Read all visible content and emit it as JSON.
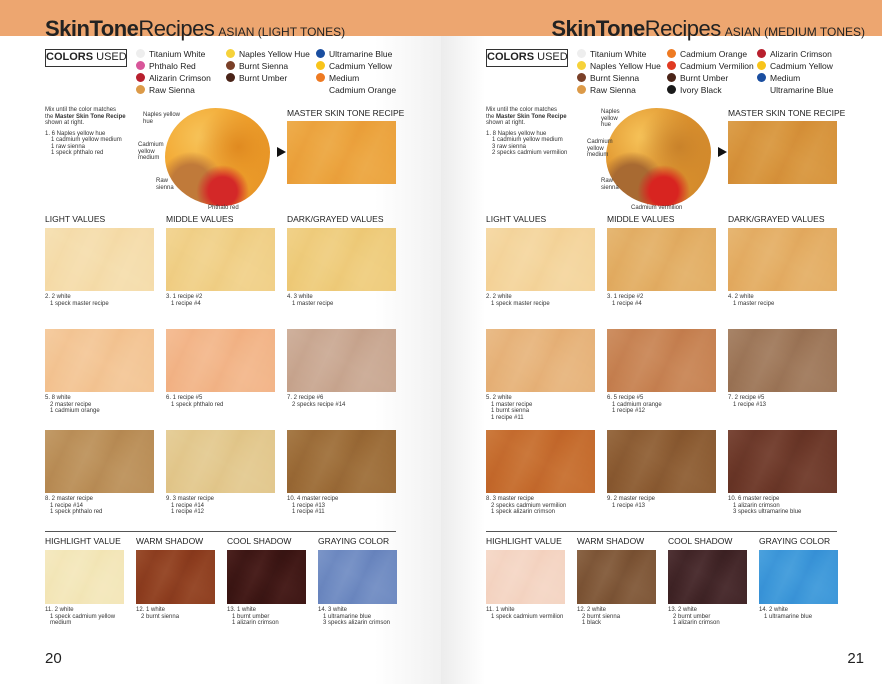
{
  "pages": [
    {
      "side": "left",
      "page_number": "20",
      "title": {
        "part1": "SkinTone",
        "part2": "Recipes",
        "subtitle": "ASIAN (LIGHT TONES)"
      },
      "colors_used_label": {
        "bold": "COLORS",
        "rest": "USED"
      },
      "colors_used": [
        [
          {
            "label": "Titanium White",
            "color": "#eeeeee"
          },
          {
            "label": "Phthalo Red",
            "color": "#d8569a"
          },
          {
            "label": "Alizarin Crimson",
            "color": "#b8202e"
          },
          {
            "label": "Raw Sienna",
            "color": "#dc9a48"
          }
        ],
        [
          {
            "label": "Naples Yellow Hue",
            "color": "#f6d23a"
          },
          {
            "label": "Burnt Sienna",
            "color": "#7a4028"
          },
          {
            "label": "Burnt Umber",
            "color": "#4a2418"
          }
        ],
        [
          {
            "label": "Ultramarine Blue",
            "color": "#1a4ea0"
          },
          {
            "label": "Cadmium Yellow",
            "color": "#f8c41a"
          },
          {
            "label": "Medium",
            "color": "#ee7a22"
          },
          {
            "label": "Cadmium Orange",
            "color": ""
          }
        ]
      ],
      "intro": {
        "line1": "Mix until the color matches",
        "line2_pre": "the",
        "bold": "Master Skin Tone Recipe",
        "line3": "shown at right.",
        "recipe": [
          "1. 6 Naples yellow hue",
          "1 cadmium yellow medium",
          "1 raw sienna",
          "1 speck phthalo red"
        ]
      },
      "palette_labels": [
        "Naples yellow hue",
        "Cadmium yellow medium",
        "Raw sienna",
        "Phthalo red"
      ],
      "palette_colors": {
        "main": "#f2a630",
        "dark": "#e08a20",
        "low": "#c07a3a",
        "accent": "#d42828"
      },
      "master_label": "MASTER SKIN TONE RECIPE",
      "master_color": "#eba23c",
      "sections": [
        "LIGHT VALUES",
        "MIDDLE VALUES",
        "DARK/GRAYED VALUES"
      ],
      "grid": [
        {
          "color": "#f5dcaa",
          "recipe": [
            "2. 2 white",
            "1 speck master recipe"
          ]
        },
        {
          "color": "#f3c493",
          "recipe": [
            "5. 8 white",
            "2 master recipe",
            "1 cadmium orange"
          ]
        },
        {
          "color": "#b98d56",
          "recipe": [
            "8. 2 master recipe",
            "1 recipe #14",
            "1 speck phthalo red"
          ]
        },
        {
          "color": "#f0cf86",
          "recipe": [
            "3. 1 recipe #2",
            "1 recipe #4"
          ]
        },
        {
          "color": "#f2b487",
          "recipe": [
            "6. 1 recipe #5",
            "1 speck phthalo red"
          ]
        },
        {
          "color": "#e2c78c",
          "recipe": [
            "9. 3 master recipe",
            "1 recipe #14",
            "1 recipe #12"
          ]
        },
        {
          "color": "#eecb7a",
          "recipe": [
            "4. 3 white",
            "1 master recipe"
          ]
        },
        {
          "color": "#c8a690",
          "recipe": [
            "7. 2 recipe #6",
            "2 specks recipe #14"
          ]
        },
        {
          "color": "#9a6a36",
          "recipe": [
            "10. 4 master recipe",
            "1 recipe #13",
            "1 recipe #11"
          ]
        }
      ],
      "bottom_sections": [
        "HIGHLIGHT VALUE",
        "WARM SHADOW",
        "COOL SHADOW",
        "GRAYING COLOR"
      ],
      "bottom": [
        {
          "color": "#f3e6b8",
          "recipe": [
            "11. 2 white",
            "1 speck cadmium yellow",
            "medium"
          ]
        },
        {
          "color": "#8c3c1e",
          "recipe": [
            "12. 1 white",
            "2 burnt sienna"
          ]
        },
        {
          "color": "#3b1513",
          "recipe": [
            "13. 1 white",
            "1 burnt umber",
            "1 alizarin crimson"
          ]
        },
        {
          "color": "#6c88c0",
          "recipe": [
            "14. 3 white",
            "1 ultramarine blue",
            "3 specks alizarin crimson"
          ]
        }
      ]
    },
    {
      "side": "right",
      "page_number": "21",
      "title": {
        "part1": "SkinTone",
        "part2": "Recipes",
        "subtitle": "ASIAN (MEDIUM TONES)"
      },
      "colors_used_label": {
        "bold": "COLORS",
        "rest": "USED"
      },
      "colors_used": [
        [
          {
            "label": "Titanium White",
            "color": "#eeeeee"
          },
          {
            "label": "Naples Yellow Hue",
            "color": "#f6d23a"
          },
          {
            "label": "Burnt Sienna",
            "color": "#7a4028"
          },
          {
            "label": "Raw Sienna",
            "color": "#dc9a48"
          }
        ],
        [
          {
            "label": "Cadmium Orange",
            "color": "#ee7a22"
          },
          {
            "label": "Cadmium Vermilion",
            "color": "#e03a22"
          },
          {
            "label": "Burnt Umber",
            "color": "#4a2418"
          },
          {
            "label": "Ivory Black",
            "color": "#1a1a1a"
          }
        ],
        [
          {
            "label": "Alizarin Crimson",
            "color": "#b8202e"
          },
          {
            "label": "Cadmium Yellow",
            "color": "#f8c41a"
          },
          {
            "label": "Medium",
            "color": "#1a4ea0"
          },
          {
            "label": "Ultramarine Blue",
            "color": ""
          }
        ]
      ],
      "intro": {
        "line1": "Mix until the color matches",
        "line2_pre": "the",
        "bold": "Master Skin Tone Recipe",
        "line3": "shown at right.",
        "recipe": [
          "1. 8 Naples yellow hue",
          "1 cadmium yellow medium",
          "3 raw sienna",
          "2 specks cadmium vermilion"
        ]
      },
      "palette_labels": [
        "Naples yellow hue",
        "Cadmium yellow medium",
        "Raw sienna",
        "Cadmium vermilion"
      ],
      "palette_colors": {
        "main": "#e0952e",
        "dark": "#c9822a",
        "low": "#a86a32",
        "accent": "#d82420"
      },
      "master_label": "MASTER SKIN TONE RECIPE",
      "master_color": "#d6923a",
      "sections": [
        "LIGHT VALUES",
        "MIDDLE VALUES",
        "DARK/GRAYED VALUES"
      ],
      "grid": [
        {
          "color": "#f4d49b",
          "recipe": [
            "2. 2 white",
            "1 speck master recipe"
          ]
        },
        {
          "color": "#e6b279",
          "recipe": [
            "5. 2 white",
            "1 master recipe",
            "1 burnt sienna",
            "1 recipe #11"
          ]
        },
        {
          "color": "#c46a2c",
          "recipe": [
            "8. 3 master recipe",
            "2 specks cadmium vermilion",
            "1 speck alizarin crimson"
          ]
        },
        {
          "color": "#e2ad63",
          "recipe": [
            "3. 1 recipe #2",
            "1 recipe #4"
          ]
        },
        {
          "color": "#c68151",
          "recipe": [
            "6. 5 recipe #5",
            "1 cadmium orange",
            "1 recipe #12"
          ]
        },
        {
          "color": "#8a5a31",
          "recipe": [
            "9. 2 master recipe",
            "1 recipe #13"
          ]
        },
        {
          "color": "#e3ac62",
          "recipe": [
            "4. 2 white",
            "1 master recipe"
          ]
        },
        {
          "color": "#9c7557",
          "recipe": [
            "7. 2 recipe #5",
            "1 recipe #13"
          ]
        },
        {
          "color": "#6a3627",
          "recipe": [
            "10. 6 master recipe",
            "1 alizarin crimson",
            "3 specks ultramarine blue"
          ]
        }
      ],
      "bottom_sections": [
        "HIGHLIGHT VALUE",
        "WARM SHADOW",
        "COOL SHADOW",
        "GRAYING COLOR"
      ],
      "bottom": [
        {
          "color": "#f4d4c2",
          "recipe": [
            "11. 1 white",
            "1 speck cadmium vermilion"
          ]
        },
        {
          "color": "#7c5435",
          "recipe": [
            "12. 2 white",
            "2 burnt sienna",
            "1 black"
          ]
        },
        {
          "color": "#3f2325",
          "recipe": [
            "13. 2 white",
            "2 burnt umber",
            "1 alizarin crimson"
          ]
        },
        {
          "color": "#3a95d8",
          "recipe": [
            "14. 2 white",
            "1 ultramarine blue"
          ]
        }
      ]
    }
  ]
}
